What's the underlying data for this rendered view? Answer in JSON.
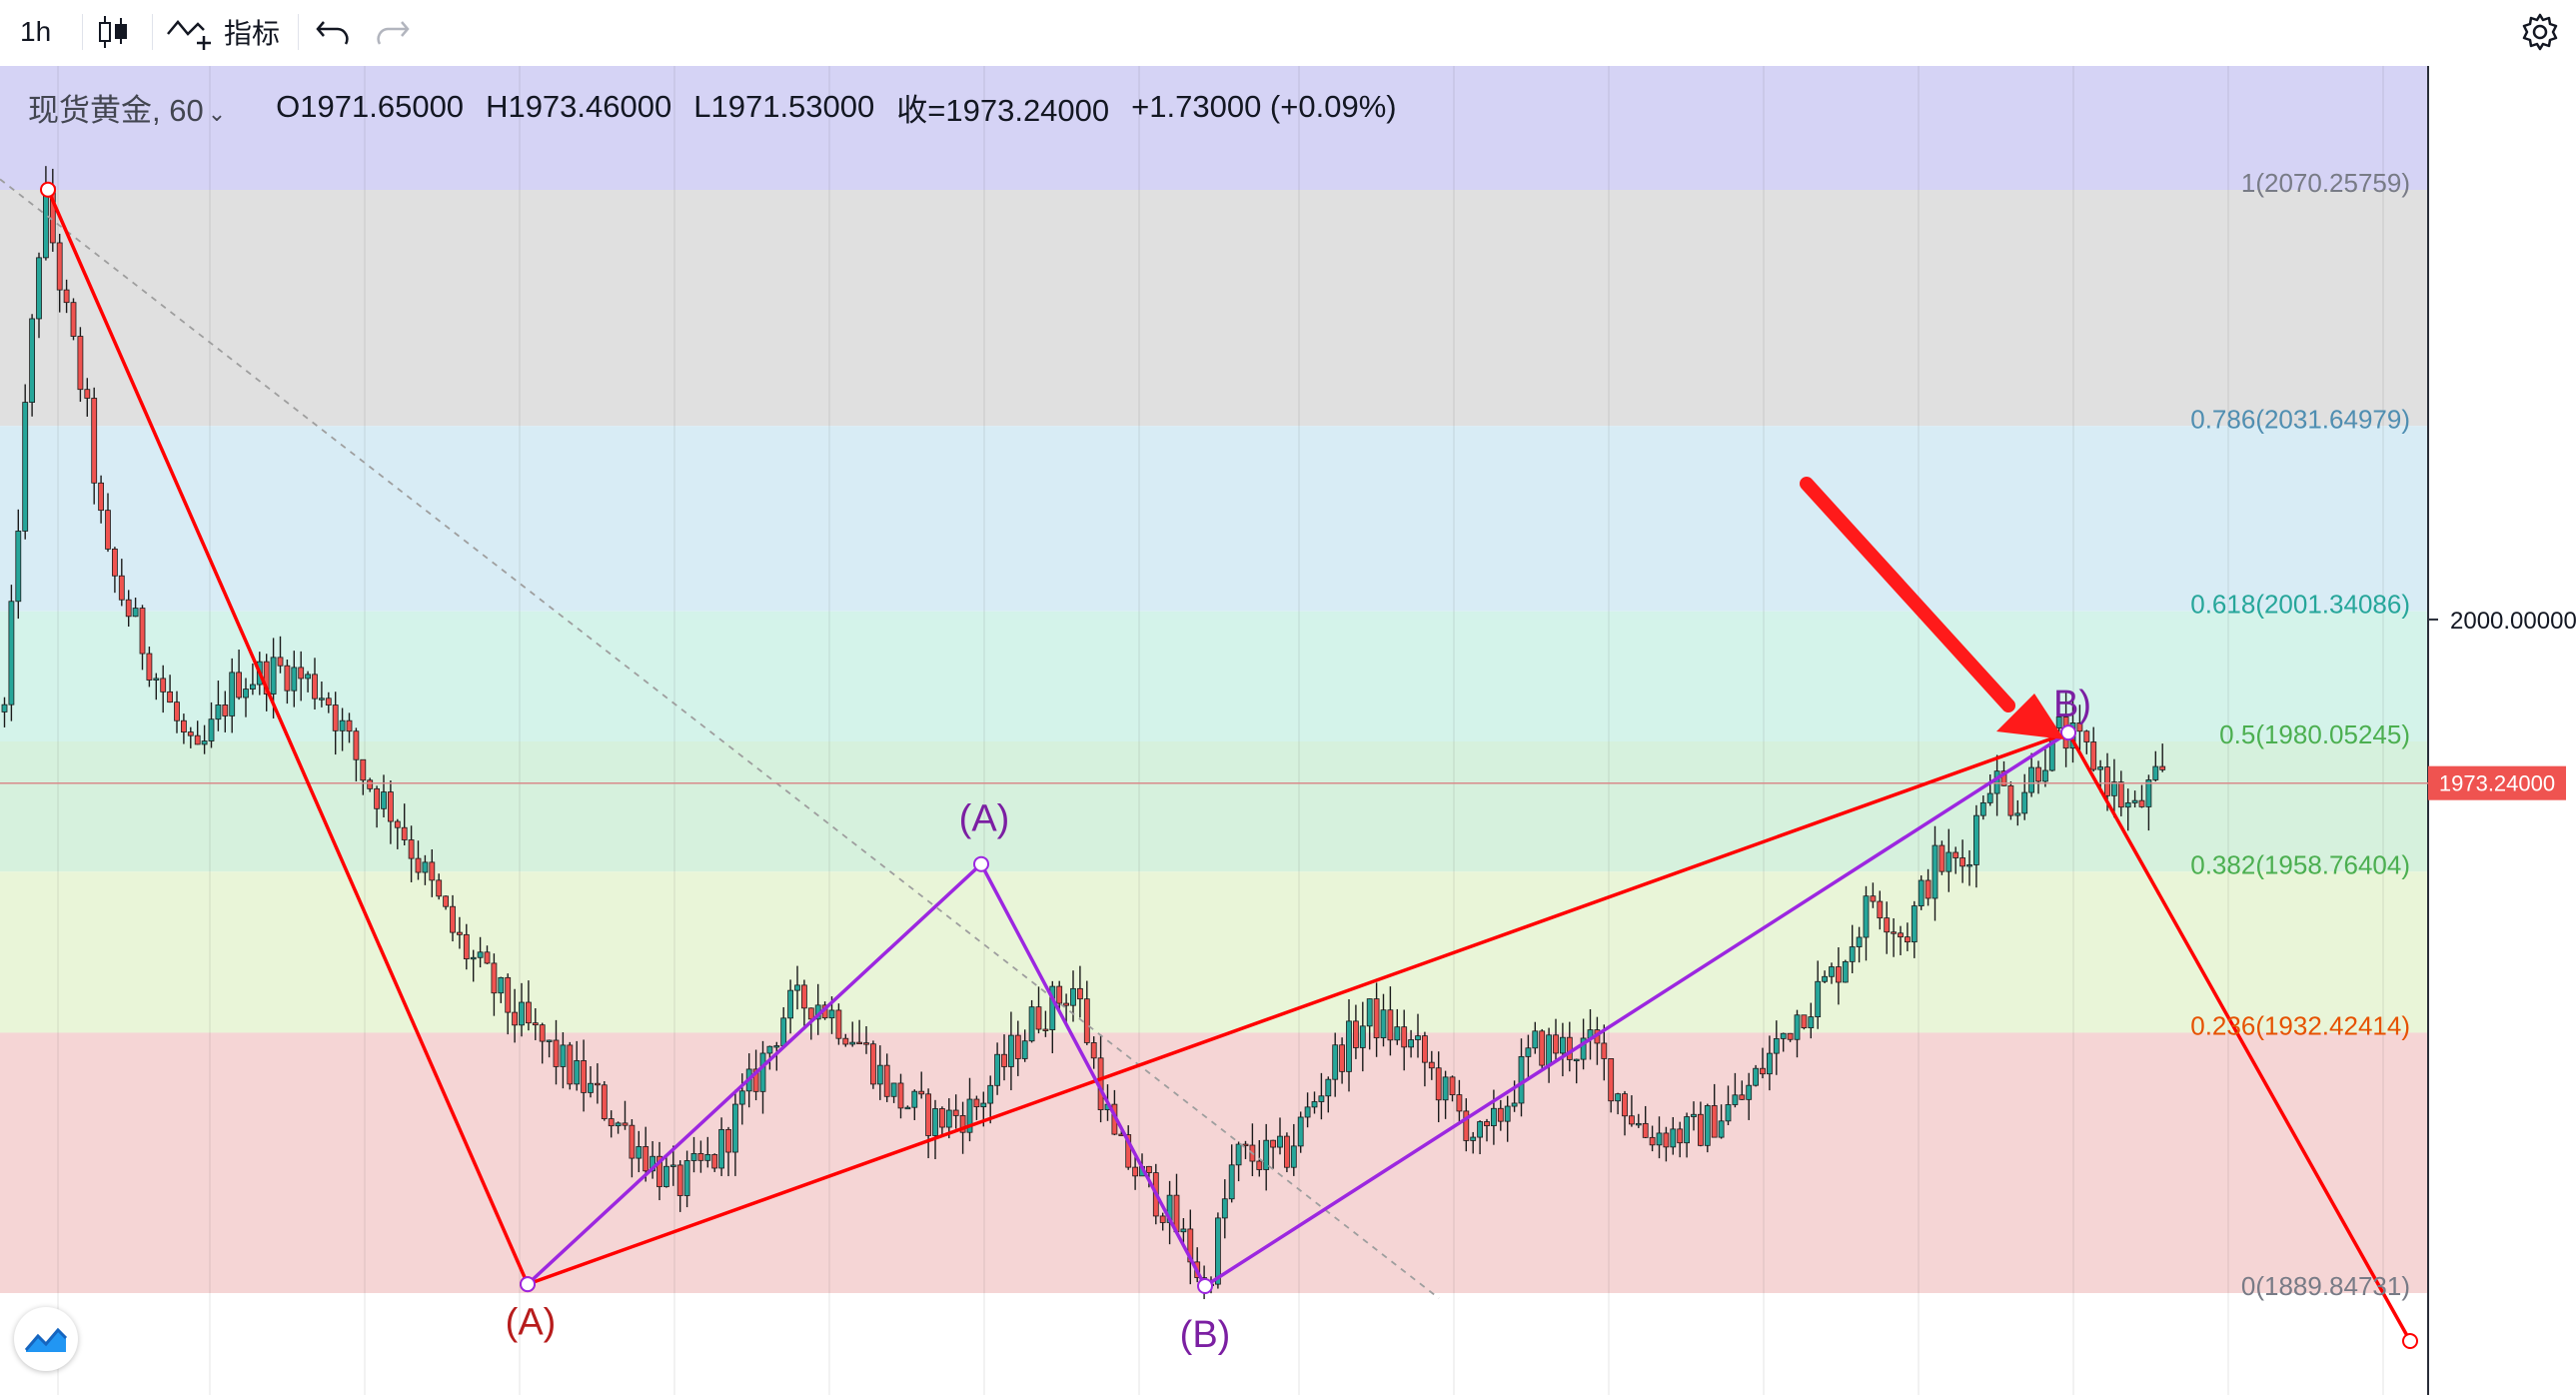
{
  "toolbar": {
    "interval": "1h",
    "indicators_label": "指标"
  },
  "legend": {
    "symbol": "现货黄金, 60",
    "open": "O1971.65000",
    "high": "H1973.46000",
    "low": "L1971.53000",
    "close": "收=1973.24000",
    "change": "+1.73000 (+0.09%)"
  },
  "colors": {
    "bull_candle": "#26a69a",
    "bear_candle": "#ef5350",
    "impulse_line": "#ff0000",
    "corrective_line": "#9c27e0",
    "wave_label_red": "#b71c1c",
    "wave_label_purple": "#7b1fa2"
  },
  "chart_data": {
    "type": "candlestick",
    "instrument": "现货黄金",
    "interval": "60",
    "y_range": [
      1862,
      2090
    ],
    "price_axis": {
      "tick": "2000.00000",
      "last_price_label": "1973.24000"
    },
    "fibonacci_retracement": {
      "levels": [
        {
          "ratio": 1,
          "label": "1(2070.25759)",
          "price": 2070.25759,
          "band_color": "#e0e0e0",
          "text_color": "#787b86"
        },
        {
          "ratio": 0.786,
          "label": "0.786(2031.64979)",
          "price": 2031.64979,
          "band_color": "#d8ecf5",
          "text_color": "#4f8eb1"
        },
        {
          "ratio": 0.618,
          "label": "0.618(2001.34086)",
          "price": 2001.34086,
          "band_color": "#d4f3ea",
          "text_color": "#26a69a"
        },
        {
          "ratio": 0.5,
          "label": "0.5(1980.05245)",
          "price": 1980.05245,
          "band_color": "#d6f1dd",
          "text_color": "#4caf50"
        },
        {
          "ratio": 0.382,
          "label": "0.382(1958.76404)",
          "price": 1958.76404,
          "band_color": "#e9f5d8",
          "text_color": "#4caf50"
        },
        {
          "ratio": 0.236,
          "label": "0.236(1932.42414)",
          "price": 1932.42414,
          "band_color": "#f5d5d5",
          "text_color": "#e65100"
        },
        {
          "ratio": 0,
          "label": "0(1889.84731)",
          "price": 1889.84731,
          "band_color": "",
          "text_color": "#787b86"
        }
      ],
      "top_band_color": "#d5d3f5"
    },
    "wave_labels": [
      {
        "label": "(A)",
        "color": "red",
        "price": 1893.5
      },
      {
        "label": "(A)",
        "color": "purple",
        "price": 1962.5
      },
      {
        "label": "(B)",
        "color": "purple",
        "price": 1890.5
      },
      {
        "label": "B)",
        "color": "purple",
        "price": 1981.5
      }
    ]
  }
}
